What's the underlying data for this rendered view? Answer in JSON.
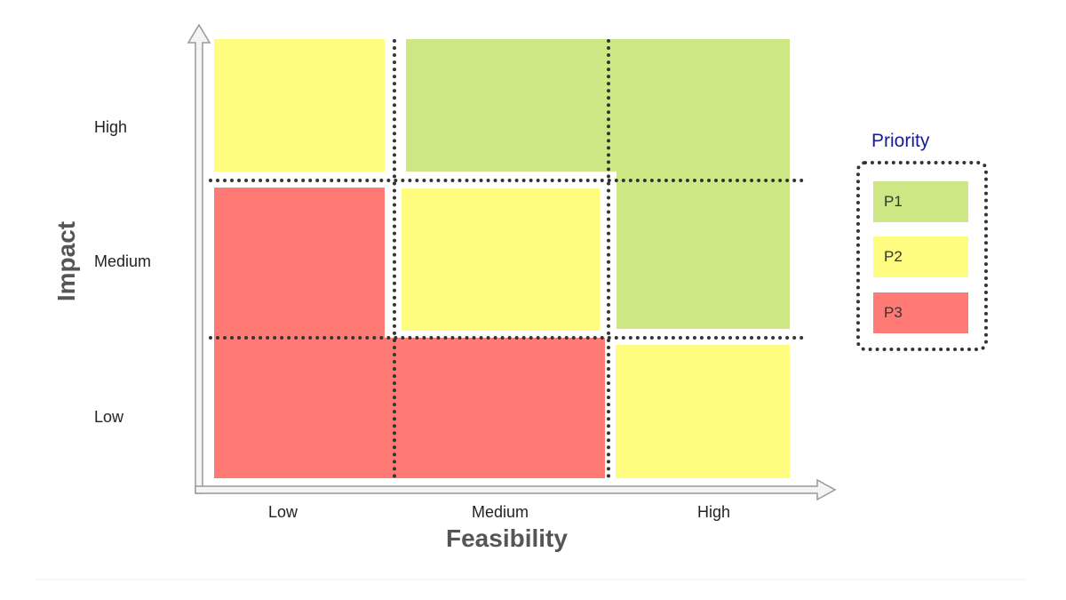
{
  "colors": {
    "p1": "#CDE784",
    "p2": "#FFFD7F",
    "p3": "#FF7A74",
    "legend_title": "#1a1a99"
  },
  "axes": {
    "x_label": "Feasibility",
    "y_label": "Impact",
    "x_ticks": [
      "Low",
      "Medium",
      "High"
    ],
    "y_ticks": [
      "High",
      "Medium",
      "Low"
    ]
  },
  "matrix": {
    "High": {
      "Low": "P2",
      "Medium": "P1",
      "High": "P1"
    },
    "Medium": {
      "Low": "P3",
      "Medium": "P2",
      "High": "P1"
    },
    "Low": {
      "Low": "P3",
      "Medium": "P3",
      "High": "P2"
    }
  },
  "legend": {
    "title": "Priority",
    "items": [
      {
        "label": "P1",
        "color": "#CDE784"
      },
      {
        "label": "P2",
        "color": "#FFFD7F"
      },
      {
        "label": "P3",
        "color": "#FF7A74"
      }
    ]
  }
}
